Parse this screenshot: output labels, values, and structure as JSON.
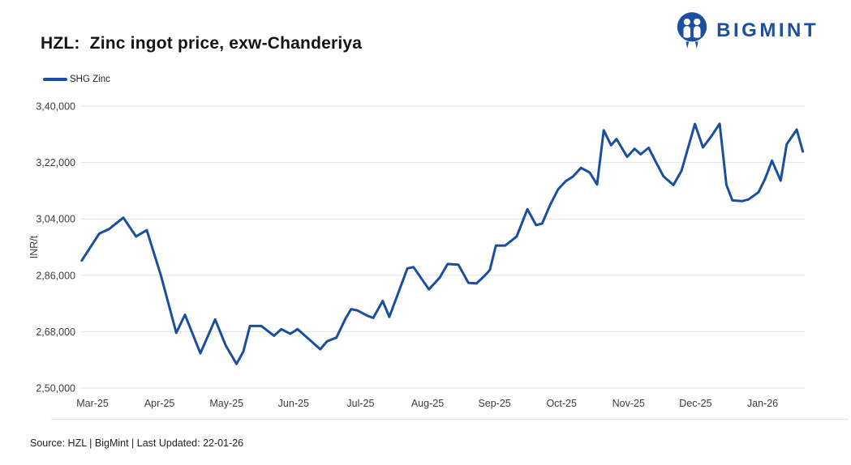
{
  "header": {
    "title": "HZL:  Zinc ingot price, exw-Chanderiya",
    "logo_text": "BIGMINT",
    "logo_icon": "two-people-in-circle-icon",
    "logo_color": "#1d4f9f"
  },
  "footer": {
    "source": "Source: HZL | BigMint | Last Updated: 22-01-26"
  },
  "chart_data": {
    "type": "line",
    "title": "HZL:  Zinc ingot price, exw-Chanderiya",
    "xlabel": "",
    "ylabel": "INR/t",
    "grid": "horizontal",
    "legend_position": "top-left",
    "ylim": [
      250000,
      340000
    ],
    "y_ticks": [
      250000,
      268000,
      286000,
      304000,
      322000,
      340000
    ],
    "y_tick_labels": [
      "2,50,000",
      "2,68,000",
      "2,86,000",
      "3,04,000",
      "3,22,000",
      "3,40,000"
    ],
    "x_tick_labels": [
      "Mar-25",
      "Apr-25",
      "May-25",
      "Jun-25",
      "Jul-25",
      "Aug-25",
      "Sep-25",
      "Oct-25",
      "Nov-25",
      "Dec-25",
      "Jan-26"
    ],
    "x_unit": "months-from-Mar-25-tick",
    "xlim_months": [
      -0.25,
      10.63
    ],
    "series": [
      {
        "name": "SHG Zinc",
        "color": "#1b4f9e",
        "points": [
          [
            -0.16,
            290700
          ],
          [
            0.1,
            299300
          ],
          [
            0.25,
            300800
          ],
          [
            0.46,
            304400
          ],
          [
            0.65,
            298400
          ],
          [
            0.81,
            300400
          ],
          [
            1.02,
            286000
          ],
          [
            1.25,
            267600
          ],
          [
            1.38,
            273400
          ],
          [
            1.61,
            261100
          ],
          [
            1.83,
            271900
          ],
          [
            1.99,
            263500
          ],
          [
            2.15,
            257700
          ],
          [
            2.25,
            261600
          ],
          [
            2.35,
            269800
          ],
          [
            2.52,
            269800
          ],
          [
            2.71,
            266700
          ],
          [
            2.82,
            268800
          ],
          [
            2.95,
            267300
          ],
          [
            3.06,
            268800
          ],
          [
            3.4,
            262400
          ],
          [
            3.5,
            264900
          ],
          [
            3.64,
            266100
          ],
          [
            3.77,
            271900
          ],
          [
            3.86,
            275200
          ],
          [
            3.95,
            274800
          ],
          [
            4.1,
            273100
          ],
          [
            4.19,
            272400
          ],
          [
            4.33,
            277800
          ],
          [
            4.43,
            272700
          ],
          [
            4.7,
            288200
          ],
          [
            4.79,
            288600
          ],
          [
            5.02,
            281500
          ],
          [
            5.18,
            285200
          ],
          [
            5.3,
            289600
          ],
          [
            5.46,
            289400
          ],
          [
            5.61,
            283600
          ],
          [
            5.73,
            283400
          ],
          [
            5.86,
            286000
          ],
          [
            5.93,
            287700
          ],
          [
            6.02,
            295500
          ],
          [
            6.16,
            295500
          ],
          [
            6.33,
            298400
          ],
          [
            6.49,
            307100
          ],
          [
            6.62,
            302000
          ],
          [
            6.71,
            302500
          ],
          [
            6.83,
            308500
          ],
          [
            6.95,
            313500
          ],
          [
            7.06,
            316000
          ],
          [
            7.17,
            317500
          ],
          [
            7.29,
            320300
          ],
          [
            7.42,
            318800
          ],
          [
            7.53,
            315000
          ],
          [
            7.63,
            332300
          ],
          [
            7.74,
            327500
          ],
          [
            7.82,
            329500
          ],
          [
            7.98,
            323800
          ],
          [
            8.09,
            326400
          ],
          [
            8.18,
            324600
          ],
          [
            8.3,
            326700
          ],
          [
            8.4,
            322500
          ],
          [
            8.52,
            317600
          ],
          [
            8.67,
            314800
          ],
          [
            8.79,
            319400
          ],
          [
            8.99,
            334300
          ],
          [
            9.11,
            326800
          ],
          [
            9.24,
            330500
          ],
          [
            9.36,
            334400
          ],
          [
            9.46,
            314900
          ],
          [
            9.55,
            309900
          ],
          [
            9.7,
            309700
          ],
          [
            9.79,
            310200
          ],
          [
            9.94,
            312500
          ],
          [
            10.04,
            316900
          ],
          [
            10.14,
            322600
          ],
          [
            10.27,
            316200
          ],
          [
            10.36,
            327800
          ],
          [
            10.51,
            332500
          ],
          [
            10.6,
            325500
          ]
        ]
      }
    ]
  }
}
